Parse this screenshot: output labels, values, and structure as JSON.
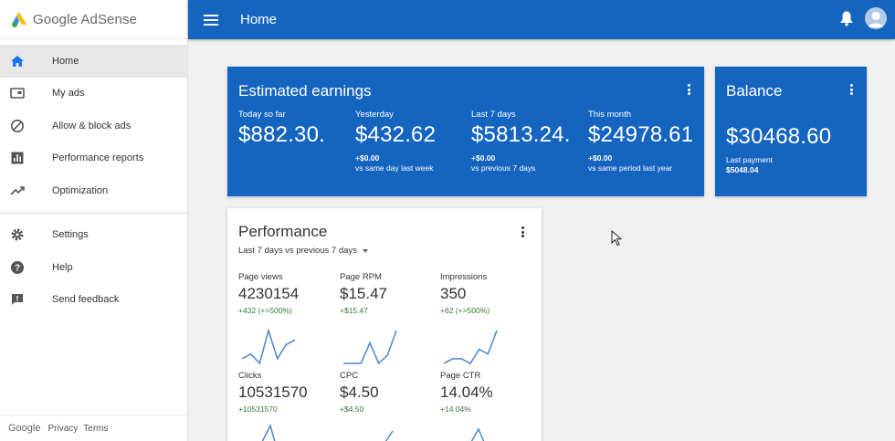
{
  "brand": {
    "name": "Google AdSense"
  },
  "sidebar": {
    "items": [
      {
        "label": "Home",
        "icon": "home-icon",
        "active": true
      },
      {
        "label": "My ads",
        "icon": "ad-unit-icon"
      },
      {
        "label": "Allow & block ads",
        "icon": "block-icon"
      },
      {
        "label": "Performance reports",
        "icon": "bar-chart-icon"
      },
      {
        "label": "Optimization",
        "icon": "trending-up-icon"
      },
      {
        "label": "Settings",
        "icon": "gear-icon"
      },
      {
        "label": "Help",
        "icon": "help-icon"
      },
      {
        "label": "Send feedback",
        "icon": "feedback-icon"
      }
    ],
    "footer": {
      "google": "Google",
      "privacy": "Privacy",
      "terms": "Terms"
    }
  },
  "topbar": {
    "title": "Home"
  },
  "earnings": {
    "title": "Estimated earnings",
    "columns": [
      {
        "label": "Today so far",
        "value": "$882.30.",
        "delta": "",
        "sub": ""
      },
      {
        "label": "Yesterday",
        "value": "$432.62",
        "delta": "+$0.00",
        "sub": "vs same day last week"
      },
      {
        "label": "Last 7 days",
        "value": "$5813.24.",
        "delta": "+$0.00",
        "sub": "vs previous 7 days"
      },
      {
        "label": "This month",
        "value": "$24978.61",
        "delta": "+$0.00",
        "sub": "vs same period last year"
      }
    ]
  },
  "balance": {
    "title": "Balance",
    "value": "$30468.60",
    "last_payment_label": "Last payment",
    "last_payment_value": "$5048.04"
  },
  "performance": {
    "title": "Performance",
    "range": "Last 7 days vs previous 7 days",
    "metrics": [
      {
        "label": "Page views",
        "value": "4230154",
        "delta": "+432 (+>500%)",
        "trend": [
          2,
          3,
          1,
          8,
          2,
          5,
          6
        ]
      },
      {
        "label": "Page RPM",
        "value": "$15.47",
        "delta": "+$15.47",
        "trend": [
          1,
          1,
          1,
          6,
          1,
          3,
          9
        ]
      },
      {
        "label": "Impressions",
        "value": "350",
        "delta": "+62 (+>500%)",
        "trend": [
          1,
          2,
          2,
          1,
          4,
          3,
          8
        ]
      },
      {
        "label": "Clicks",
        "value": "10531570",
        "delta": "+10531570",
        "trend": []
      },
      {
        "label": "CPC",
        "value": "$4.50",
        "delta": "+$4.50",
        "trend": []
      },
      {
        "label": "Page CTR",
        "value": "14.04%",
        "delta": "+14.04%",
        "trend": []
      }
    ]
  },
  "colors": {
    "primary": "#1565c0",
    "positive": "#2e7d32",
    "spark": "#4a86c8"
  }
}
